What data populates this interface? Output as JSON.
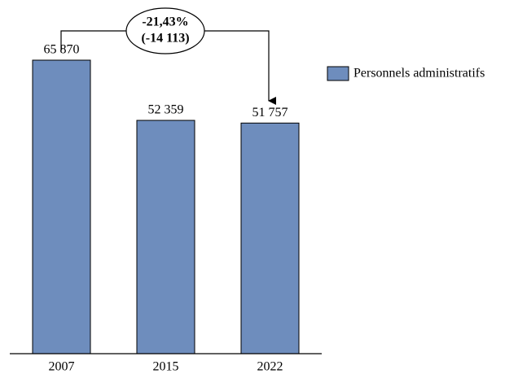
{
  "chart_data": {
    "type": "bar",
    "categories": [
      "2007",
      "2015",
      "2022"
    ],
    "series": [
      {
        "name": "Personnels administratifs",
        "color": "#6e8dbd",
        "values": [
          65870,
          52359,
          51757
        ],
        "value_labels": [
          "65 870",
          "52 359",
          "51 757"
        ]
      }
    ],
    "annotations": [
      "-21,43%",
      "(-14 113)"
    ],
    "legend": "right"
  }
}
